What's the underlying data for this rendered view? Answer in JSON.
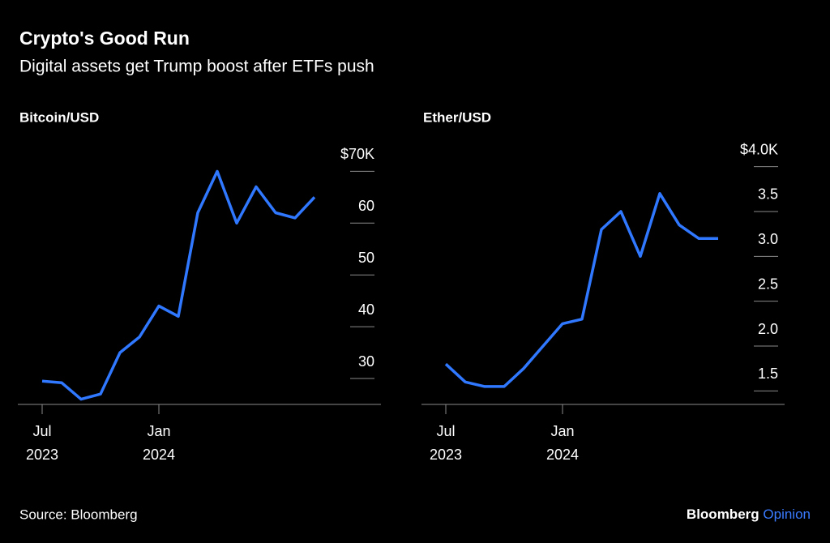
{
  "title": "Crypto's Good Run",
  "subtitle": "Digital assets get Trump boost after ETFs push",
  "source": "Source: Bloomberg",
  "logo": {
    "brand": "Bloomberg",
    "tag": "Opinion"
  },
  "chart_data": [
    {
      "type": "line",
      "title": "Bitcoin/USD",
      "x": [
        "2023-07",
        "2023-08",
        "2023-09",
        "2023-10",
        "2023-11",
        "2023-12",
        "2024-01",
        "2024-02",
        "2024-03",
        "2024-04",
        "2024-05",
        "2024-06",
        "2024-07",
        "2024-08",
        "2024-09"
      ],
      "series": [
        {
          "name": "Bitcoin/USD",
          "color": "#2f78ff",
          "values": [
            29.5,
            29.2,
            26,
            27,
            35,
            38,
            44,
            42,
            62,
            70,
            60,
            67,
            62,
            61,
            65
          ]
        }
      ],
      "xlim": [
        "2023-06",
        "2024-12"
      ],
      "xticks": [
        {
          "value": "2023-07",
          "label": [
            "Jul",
            "2023"
          ]
        },
        {
          "value": "2024-01",
          "label": [
            "Jan",
            "2024"
          ]
        }
      ],
      "ylim": [
        25,
        73.5
      ],
      "yticks": [
        {
          "value": 70,
          "label": "$70K"
        },
        60,
        50,
        40,
        30
      ]
    },
    {
      "type": "line",
      "title": "Ether/USD",
      "x": [
        "2023-07",
        "2023-08",
        "2023-09",
        "2023-10",
        "2023-11",
        "2023-12",
        "2024-01",
        "2024-02",
        "2024-03",
        "2024-04",
        "2024-05",
        "2024-06",
        "2024-07",
        "2024-08",
        "2024-09"
      ],
      "series": [
        {
          "name": "Ether/USD",
          "color": "#2f78ff",
          "values": [
            1.8,
            1.6,
            1.55,
            1.55,
            1.75,
            2.0,
            2.25,
            2.3,
            3.3,
            3.5,
            3.0,
            3.7,
            3.35,
            3.2,
            3.2
          ]
        }
      ],
      "xlim": [
        "2023-06",
        "2024-12"
      ],
      "xticks": [
        {
          "value": "2023-07",
          "label": [
            "Jul",
            "2023"
          ]
        },
        {
          "value": "2024-01",
          "label": [
            "Jan",
            "2024"
          ]
        }
      ],
      "ylim": [
        1.35,
        4.15
      ],
      "yticks": [
        {
          "value": 4.0,
          "label": "$4.0K"
        },
        3.5,
        {
          "value": 3.0,
          "label": "3.0"
        },
        2.5,
        {
          "value": 2.0,
          "label": "2.0"
        },
        1.5
      ]
    }
  ]
}
